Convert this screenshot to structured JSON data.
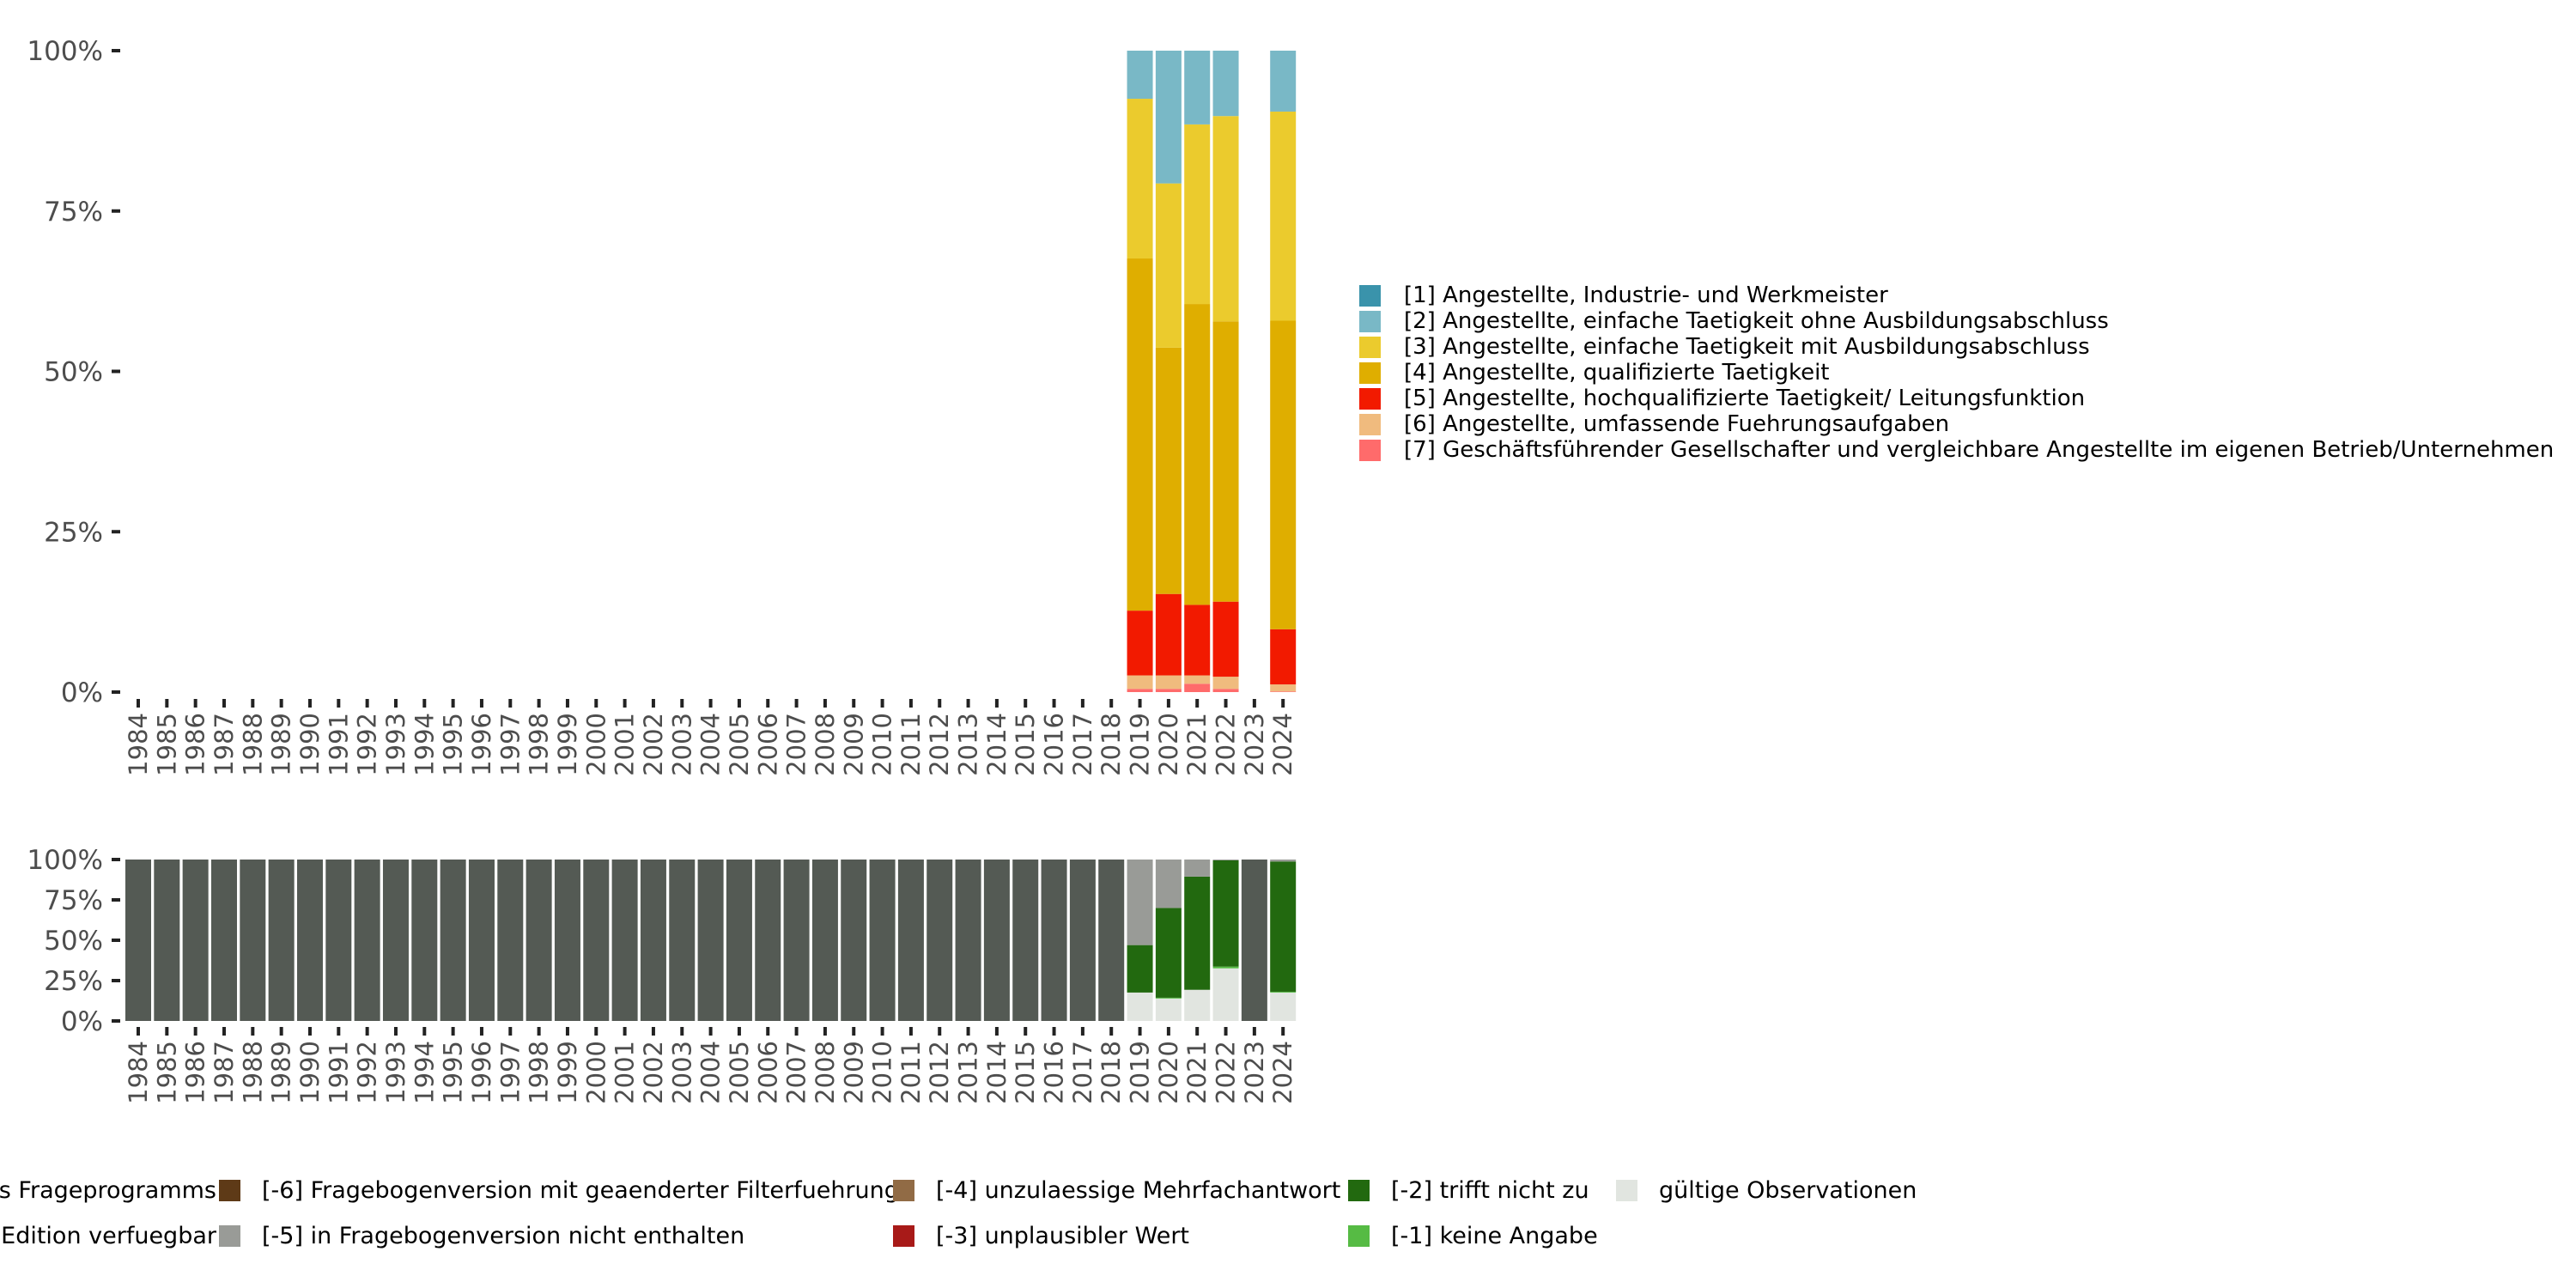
{
  "chart_data": [
    {
      "type": "bar",
      "stacked": true,
      "title": "",
      "xlabel": "",
      "ylabel": "",
      "ylim": [
        0,
        100
      ],
      "yticks": [
        "0%",
        "25%",
        "50%",
        "75%",
        "100%"
      ],
      "categories": [
        "1984",
        "1985",
        "1986",
        "1987",
        "1988",
        "1989",
        "1990",
        "1991",
        "1992",
        "1993",
        "1994",
        "1995",
        "1996",
        "1997",
        "1998",
        "1999",
        "2000",
        "2001",
        "2002",
        "2003",
        "2004",
        "2005",
        "2006",
        "2007",
        "2008",
        "2009",
        "2010",
        "2011",
        "2012",
        "2013",
        "2014",
        "2015",
        "2016",
        "2017",
        "2018",
        "2019",
        "2020",
        "2021",
        "2022",
        "2023",
        "2024"
      ],
      "legend_position": "right",
      "series": [
        {
          "name": "[7] Geschäftsführender Gesellschafter und vergleichbare Angestellte im eigenen Betrieb/Unternehmen",
          "color": "#ff6b6b",
          "values": {
            "2019": 0.5,
            "2020": 0.5,
            "2021": 1.3,
            "2022": 0.5,
            "2024": 0.1
          }
        },
        {
          "name": "[6] Angestellte, umfassende Fuehrungsaufgaben",
          "color": "#f0bb7e",
          "values": {
            "2019": 2.1,
            "2020": 2.1,
            "2021": 1.3,
            "2022": 1.9,
            "2024": 1.1
          }
        },
        {
          "name": "[5] Angestellte, hochqualifizierte Taetigkeit/ Leitungsfunktion",
          "color": "#f21a00",
          "values": {
            "2019": 10.1,
            "2020": 12.7,
            "2021": 11.0,
            "2022": 11.7,
            "2024": 8.6
          }
        },
        {
          "name": "[4] Angestellte, qualifizierte Taetigkeit",
          "color": "#dfae00",
          "values": {
            "2019": 54.9,
            "2020": 38.4,
            "2021": 46.9,
            "2022": 43.7,
            "2024": 48.1
          }
        },
        {
          "name": "[3] Angestellte, einfache Taetigkeit mit Ausbildungsabschluss",
          "color": "#ebcb2d",
          "values": {
            "2019": 24.9,
            "2020": 25.6,
            "2021": 28.0,
            "2022": 32.0,
            "2024": 32.6
          }
        },
        {
          "name": "[2] Angestellte, einfache Taetigkeit ohne Ausbildungsabschluss",
          "color": "#79b8c6",
          "values": {
            "2019": 7.5,
            "2020": 20.7,
            "2021": 11.5,
            "2022": 10.2,
            "2024": 9.5
          }
        },
        {
          "name": "[1] Angestellte, Industrie- und Werkmeister",
          "color": "#3a93ab",
          "values": {}
        }
      ]
    },
    {
      "type": "bar",
      "stacked": true,
      "title": "",
      "xlabel": "",
      "ylabel": "",
      "ylim": [
        0,
        100
      ],
      "yticks": [
        "0%",
        "25%",
        "50%",
        "75%",
        "100%"
      ],
      "categories": [
        "1984",
        "1985",
        "1986",
        "1987",
        "1988",
        "1989",
        "1990",
        "1991",
        "1992",
        "1993",
        "1994",
        "1995",
        "1996",
        "1997",
        "1998",
        "1999",
        "2000",
        "2001",
        "2002",
        "2003",
        "2004",
        "2005",
        "2006",
        "2007",
        "2008",
        "2009",
        "2010",
        "2011",
        "2012",
        "2013",
        "2014",
        "2015",
        "2016",
        "2017",
        "2018",
        "2019",
        "2020",
        "2021",
        "2022",
        "2023",
        "2024"
      ],
      "legend_position": "bottom",
      "series": [
        {
          "name": "gültige Observationen",
          "color": "#e1e5e0",
          "values": {
            "2019": 17.6,
            "2020": 13.9,
            "2021": 19.3,
            "2022": 32.6,
            "2024": 17.6
          }
        },
        {
          "name": "[-1] keine Angabe",
          "color": "#56bb44",
          "values": {
            "2020": 0.5,
            "2022": 1.1,
            "2024": 0.5
          }
        },
        {
          "name": "[-2] trifft nicht zu",
          "color": "#22690f",
          "values": {
            "2019": 29.4,
            "2020": 55.6,
            "2021": 70.1,
            "2022": 65.8,
            "2024": 80.7
          }
        },
        {
          "name": "[-3] unplausibler Wert",
          "color": "#a81a18",
          "values": {}
        },
        {
          "name": "[-4] unzulaessige Mehrfachantwort",
          "color": "#916b45",
          "values": {}
        },
        {
          "name": "[-5] in Fragebogenversion nicht enthalten",
          "color": "#999b97",
          "values": {
            "2019": 53.0,
            "2020": 30.0,
            "2021": 10.6,
            "2022": 0.5,
            "2024": 1.2
          }
        },
        {
          "name": "[-6] Fragebogenversion mit geaenderter Filterfuehrung",
          "color": "#5e3a17",
          "values": {}
        },
        {
          "name": "…Edition verfuegbar",
          "color": "#7f7f7f",
          "values": {}
        },
        {
          "name": "…s Frageprogramms",
          "color": "#545a54",
          "values": {
            "1984": 100,
            "1985": 100,
            "1986": 100,
            "1987": 100,
            "1988": 100,
            "1989": 100,
            "1990": 100,
            "1991": 100,
            "1992": 100,
            "1993": 100,
            "1994": 100,
            "1995": 100,
            "1996": 100,
            "1997": 100,
            "1998": 100,
            "1999": 100,
            "2000": 100,
            "2001": 100,
            "2002": 100,
            "2003": 100,
            "2004": 100,
            "2005": 100,
            "2006": 100,
            "2007": 100,
            "2008": 100,
            "2009": 100,
            "2010": 100,
            "2011": 100,
            "2012": 100,
            "2013": 100,
            "2014": 100,
            "2015": 100,
            "2016": 100,
            "2017": 100,
            "2018": 100,
            "2023": 100
          }
        }
      ]
    }
  ],
  "top_legend": [
    {
      "label": "[1] Angestellte, Industrie- und Werkmeister",
      "color": "#3a93ab"
    },
    {
      "label": "[2] Angestellte, einfache Taetigkeit ohne Ausbildungsabschluss",
      "color": "#79b8c6"
    },
    {
      "label": "[3] Angestellte, einfache Taetigkeit mit Ausbildungsabschluss",
      "color": "#ebcb2d"
    },
    {
      "label": "[4] Angestellte, qualifizierte Taetigkeit",
      "color": "#dfae00"
    },
    {
      "label": "[5] Angestellte, hochqualifizierte Taetigkeit/ Leitungsfunktion",
      "color": "#f21a00"
    },
    {
      "label": "[6] Angestellte, umfassende Fuehrungsaufgaben",
      "color": "#f0bb7e"
    },
    {
      "label": "[7] Geschäftsführender Gesellschafter und vergleichbare Angestellte im eigenen Betrieb/Unternehmen",
      "color": "#ff6b6b"
    }
  ],
  "bottom_legend": {
    "col0": [
      "s Frageprogramms",
      "Edition verfuegbar"
    ],
    "items": [
      {
        "label": "[-6] Fragebogenversion mit geaenderter Filterfuehrung",
        "color": "#5e3a17"
      },
      {
        "label": "[-5] in Fragebogenversion nicht enthalten",
        "color": "#999b97"
      },
      {
        "label": "[-4] unzulaessige Mehrfachantwort",
        "color": "#916b45"
      },
      {
        "label": "[-3] unplausibler Wert",
        "color": "#a81a18"
      },
      {
        "label": "[-2] trifft nicht zu",
        "color": "#22690f"
      },
      {
        "label": "[-1] keine Angabe",
        "color": "#56bb44"
      },
      {
        "label": "gültige Observationen",
        "color": "#e1e5e0"
      }
    ]
  }
}
